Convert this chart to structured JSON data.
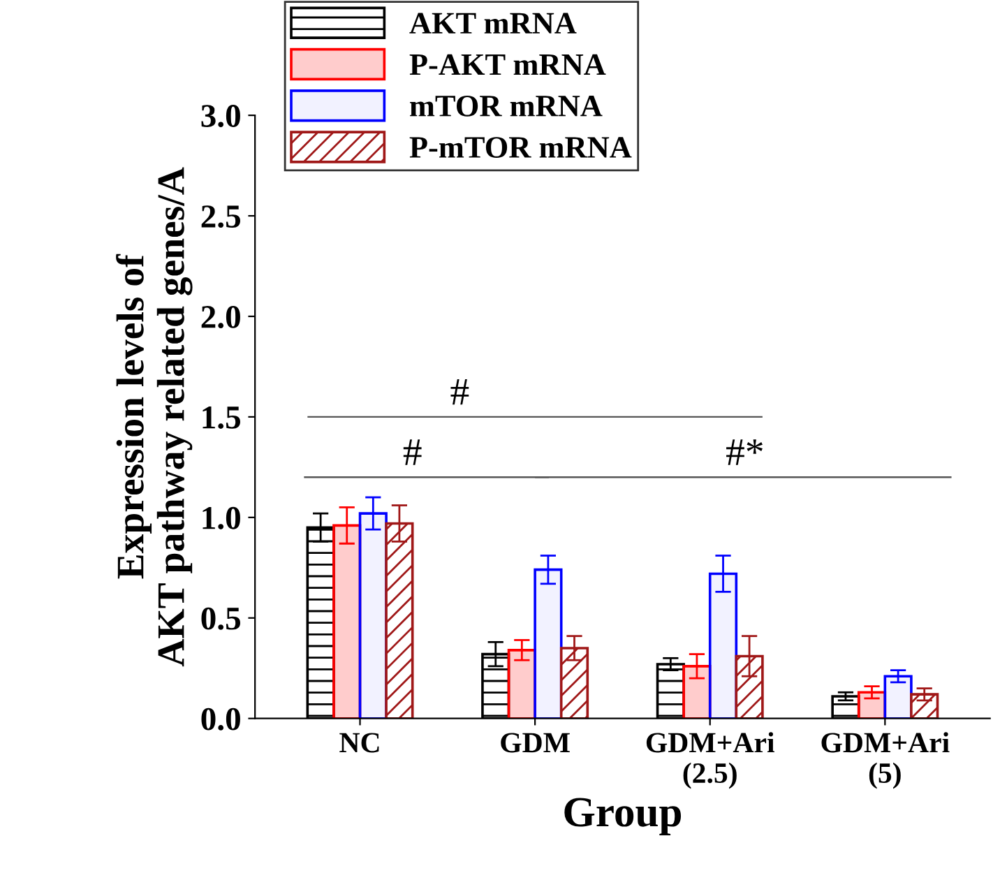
{
  "chart_data": {
    "type": "bar",
    "xlabel": "Group",
    "ylabel": "Expression levels of\nAKT pathway related genes/A",
    "categories": [
      "NC",
      "GDM",
      "GDM+Ari\n(2.5)",
      "GDM+Ari\n(5)"
    ],
    "series": [
      {
        "name": "AKT mRNA",
        "color": "#000000",
        "values": [
          0.95,
          0.32,
          0.27,
          0.11
        ],
        "errors": [
          0.07,
          0.06,
          0.03,
          0.02
        ]
      },
      {
        "name": "P-AKT mRNA",
        "color": "#ff0000",
        "values": [
          0.96,
          0.34,
          0.26,
          0.13
        ],
        "errors": [
          0.09,
          0.05,
          0.06,
          0.03
        ]
      },
      {
        "name": "mTOR mRNA",
        "color": "#0000ff",
        "values": [
          1.02,
          0.74,
          0.72,
          0.21
        ],
        "errors": [
          0.08,
          0.07,
          0.09,
          0.03
        ]
      },
      {
        "name": "P-mTOR mRNA",
        "color": "#a01818",
        "values": [
          0.97,
          0.35,
          0.31,
          0.12
        ],
        "errors": [
          0.09,
          0.06,
          0.1,
          0.03
        ]
      }
    ],
    "ylim": [
      0,
      3.0
    ],
    "yticks": [
      {
        "value": 0,
        "label": "0.0"
      },
      0.5,
      {
        "value": 1,
        "label": "1.0"
      },
      1.5,
      {
        "value": 2,
        "label": "2.0"
      },
      2.5,
      {
        "value": 3,
        "label": "3.0"
      }
    ],
    "annotations": [
      "#",
      "#",
      "#*"
    ],
    "legend": "top left",
    "grid": false
  }
}
